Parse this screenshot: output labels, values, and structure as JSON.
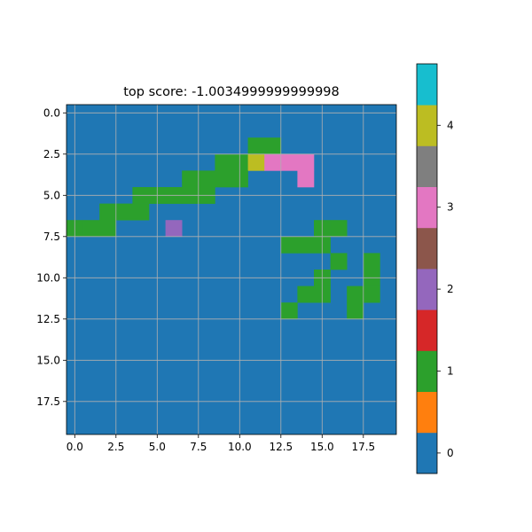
{
  "chart_data": {
    "type": "heatmap",
    "title": "top score: -1.0034999999999998",
    "xlabel": "",
    "ylabel": "",
    "grid": true,
    "x_range": [
      -0.5,
      19.5
    ],
    "y_range": [
      19.5,
      -0.5
    ],
    "x_ticks": [
      0.0,
      2.5,
      5.0,
      7.5,
      10.0,
      12.5,
      15.0,
      17.5
    ],
    "x_tick_labels": [
      "0.0",
      "2.5",
      "5.0",
      "7.5",
      "10.0",
      "12.5",
      "15.0",
      "17.5"
    ],
    "y_ticks": [
      0.0,
      2.5,
      5.0,
      7.5,
      10.0,
      12.5,
      15.0,
      17.5
    ],
    "y_tick_labels": [
      "0.0",
      "2.5",
      "5.0",
      "7.5",
      "10.0",
      "12.5",
      "15.0",
      "17.5"
    ],
    "background_value": 0,
    "cells": [
      {
        "row": 2,
        "col": 11,
        "value": 1
      },
      {
        "row": 2,
        "col": 12,
        "value": 1
      },
      {
        "row": 3,
        "col": 9,
        "value": 1
      },
      {
        "row": 3,
        "col": 10,
        "value": 1
      },
      {
        "row": 3,
        "col": 11,
        "value": 4
      },
      {
        "row": 3,
        "col": 12,
        "value": 3
      },
      {
        "row": 3,
        "col": 13,
        "value": 3
      },
      {
        "row": 3,
        "col": 14,
        "value": 3
      },
      {
        "row": 4,
        "col": 7,
        "value": 1
      },
      {
        "row": 4,
        "col": 8,
        "value": 1
      },
      {
        "row": 4,
        "col": 9,
        "value": 1
      },
      {
        "row": 4,
        "col": 10,
        "value": 1
      },
      {
        "row": 4,
        "col": 14,
        "value": 3
      },
      {
        "row": 5,
        "col": 4,
        "value": 1
      },
      {
        "row": 5,
        "col": 5,
        "value": 1
      },
      {
        "row": 5,
        "col": 6,
        "value": 1
      },
      {
        "row": 5,
        "col": 7,
        "value": 1
      },
      {
        "row": 5,
        "col": 8,
        "value": 1
      },
      {
        "row": 6,
        "col": 2,
        "value": 1
      },
      {
        "row": 6,
        "col": 3,
        "value": 1
      },
      {
        "row": 6,
        "col": 4,
        "value": 1
      },
      {
        "row": 7,
        "col": 0,
        "value": 1
      },
      {
        "row": 7,
        "col": 1,
        "value": 1
      },
      {
        "row": 7,
        "col": 2,
        "value": 1
      },
      {
        "row": 7,
        "col": 6,
        "value": 2
      },
      {
        "row": 7,
        "col": 15,
        "value": 1
      },
      {
        "row": 7,
        "col": 16,
        "value": 1
      },
      {
        "row": 8,
        "col": 13,
        "value": 1
      },
      {
        "row": 8,
        "col": 14,
        "value": 1
      },
      {
        "row": 8,
        "col": 15,
        "value": 1
      },
      {
        "row": 9,
        "col": 16,
        "value": 1
      },
      {
        "row": 9,
        "col": 18,
        "value": 1
      },
      {
        "row": 10,
        "col": 15,
        "value": 1
      },
      {
        "row": 10,
        "col": 18,
        "value": 1
      },
      {
        "row": 11,
        "col": 14,
        "value": 1
      },
      {
        "row": 11,
        "col": 15,
        "value": 1
      },
      {
        "row": 11,
        "col": 17,
        "value": 1
      },
      {
        "row": 11,
        "col": 18,
        "value": 1
      },
      {
        "row": 12,
        "col": 13,
        "value": 1
      },
      {
        "row": 12,
        "col": 17,
        "value": 1
      }
    ],
    "colorbar": {
      "range": [
        -0.25,
        4.75
      ],
      "tick_values": [
        0,
        1,
        2,
        3,
        4
      ],
      "tick_labels": [
        "0",
        "1",
        "2",
        "3",
        "4"
      ],
      "colors": [
        "#1f77b4",
        "#ff7f0e",
        "#2ca02c",
        "#d62728",
        "#9467bd",
        "#8c564b",
        "#e377c2",
        "#7f7f7f",
        "#bcbd22",
        "#17becf"
      ]
    },
    "value_colors": {
      "0": "#1f77b4",
      "1": "#2ca02c",
      "2": "#9467bd",
      "3": "#e377c2",
      "4": "#bcbd22"
    }
  }
}
